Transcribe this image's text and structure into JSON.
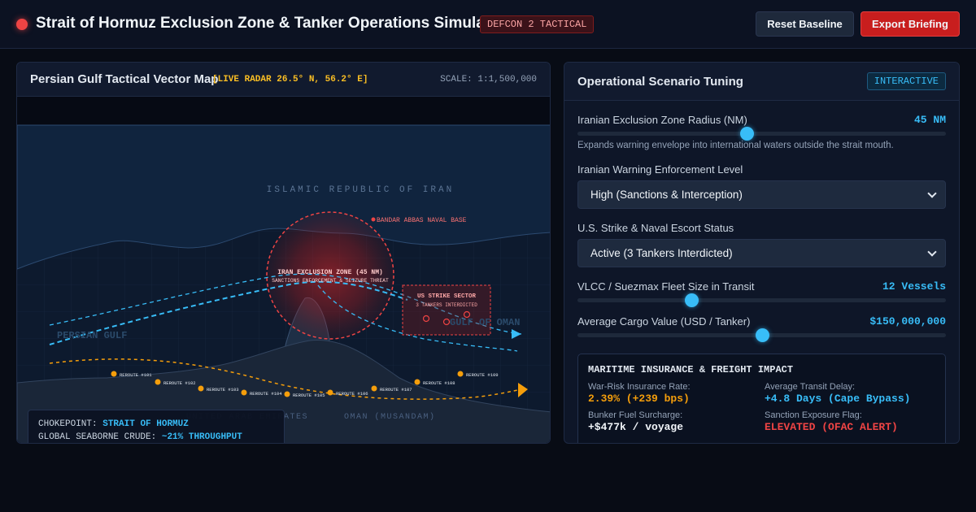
{
  "header": {
    "title": "Strait of Hormuz Exclusion Zone & Tanker Operations Simulator",
    "badge": "DEFCON 2 TACTICAL",
    "reset_label": "Reset Baseline",
    "export_label": "Export Briefing"
  },
  "map": {
    "title": "Persian Gulf Tactical Vector Map",
    "radar": "[LIVE RADAR 26.5° N, 56.2° E]",
    "scale": "SCALE: 1:1,500,000",
    "labels": {
      "iran": "ISLAMIC REPUBLIC OF IRAN",
      "base": "BANDAR ABBAS NAVAL BASE",
      "zone": "IRAN EXCLUSION ZONE (45 NM)",
      "zone_sub": "SANCTIONS ENFORCEMENT & SEIZURE THREAT",
      "strike_title": "US STRIKE SECTOR",
      "strike_sub": "3 TANKERS INTERDICTED",
      "persian_gulf": "PERSIAN GULF",
      "gulf_of_oman": "GULF OF OMAN",
      "uae": "UNITED ARAB EMIRATES",
      "oman": "OMAN (MUSANDAM)"
    },
    "reroutes": [
      "REROUTE #101",
      "REROUTE #102",
      "REROUTE #103",
      "REROUTE #104",
      "REROUTE #105",
      "REROUTE #106",
      "REROUTE #107",
      "REROUTE #108",
      "REROUTE #109"
    ],
    "info": {
      "chokepoint_key": "CHOKEPOINT:",
      "chokepoint_val": "STRAIT OF HORMUZ",
      "crude_key": "GLOBAL SEABORNE CRUDE:",
      "crude_val": "~21% THROUGHPUT"
    }
  },
  "controls": {
    "title": "Operational Scenario Tuning",
    "badge": "INTERACTIVE",
    "radius": {
      "label": "Iranian Exclusion Zone Radius (NM)",
      "value": "45 NM",
      "level": 0.46,
      "hint": "Expands warning envelope into international waters outside the strait mouth."
    },
    "warning": {
      "label": "Iranian Warning Enforcement Level",
      "selected": "High (Sanctions & Interception)"
    },
    "strike": {
      "label": "U.S. Strike & Naval Escort Status",
      "selected": "Active (3 Tankers Interdicted)"
    },
    "fleet": {
      "label": "VLCC / Suezmax Fleet Size in Transit",
      "value": "12 Vessels",
      "level": 0.31
    },
    "cargo": {
      "label": "Average Cargo Value (USD / Tanker)",
      "value": "$150,000,000",
      "level": 0.5
    }
  },
  "impact": {
    "title": "MARITIME INSURANCE & FREIGHT IMPACT",
    "war_risk_label": "War-Risk Insurance Rate:",
    "war_risk_value": "2.39% (+239 bps)",
    "delay_label": "Average Transit Delay:",
    "delay_value": "+4.8 Days (Cape Bypass)",
    "fuel_label": "Bunker Fuel Surcharge:",
    "fuel_value": "+$477k / voyage",
    "sanction_label": "Sanction Exposure Flag:",
    "sanction_value": "ELEVATED (OFAC ALERT)"
  },
  "colors": {
    "accent": "#38bdf8",
    "danger": "#ef4444",
    "warning": "#f59e0b"
  }
}
